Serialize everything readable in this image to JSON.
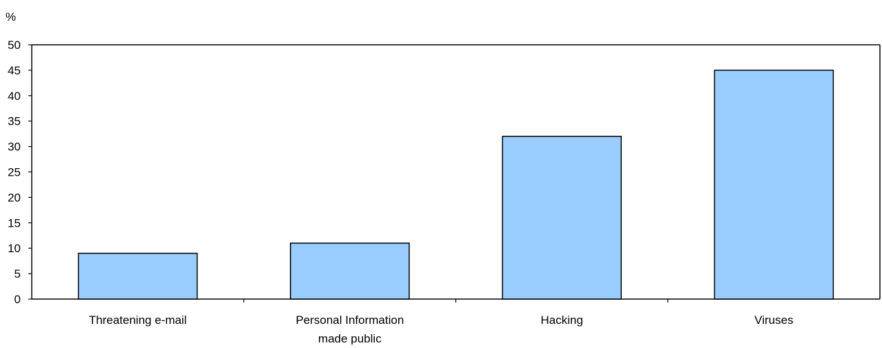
{
  "chart_data": {
    "type": "bar",
    "title": "",
    "xlabel": "",
    "ylabel": "%",
    "categories": [
      [
        "Threatening e-mail"
      ],
      [
        "Personal Information",
        "made public"
      ],
      [
        "Hacking"
      ],
      [
        "Viruses"
      ]
    ],
    "values": [
      9,
      11,
      32,
      45
    ],
    "ylim": [
      0,
      50
    ],
    "yticks": [
      0,
      5,
      10,
      15,
      20,
      25,
      30,
      35,
      40,
      45,
      50
    ],
    "grid": false,
    "legend": "none",
    "colors": {
      "bar_fill": "#99ccff",
      "bar_stroke": "#000000",
      "axis": "#000000"
    }
  }
}
